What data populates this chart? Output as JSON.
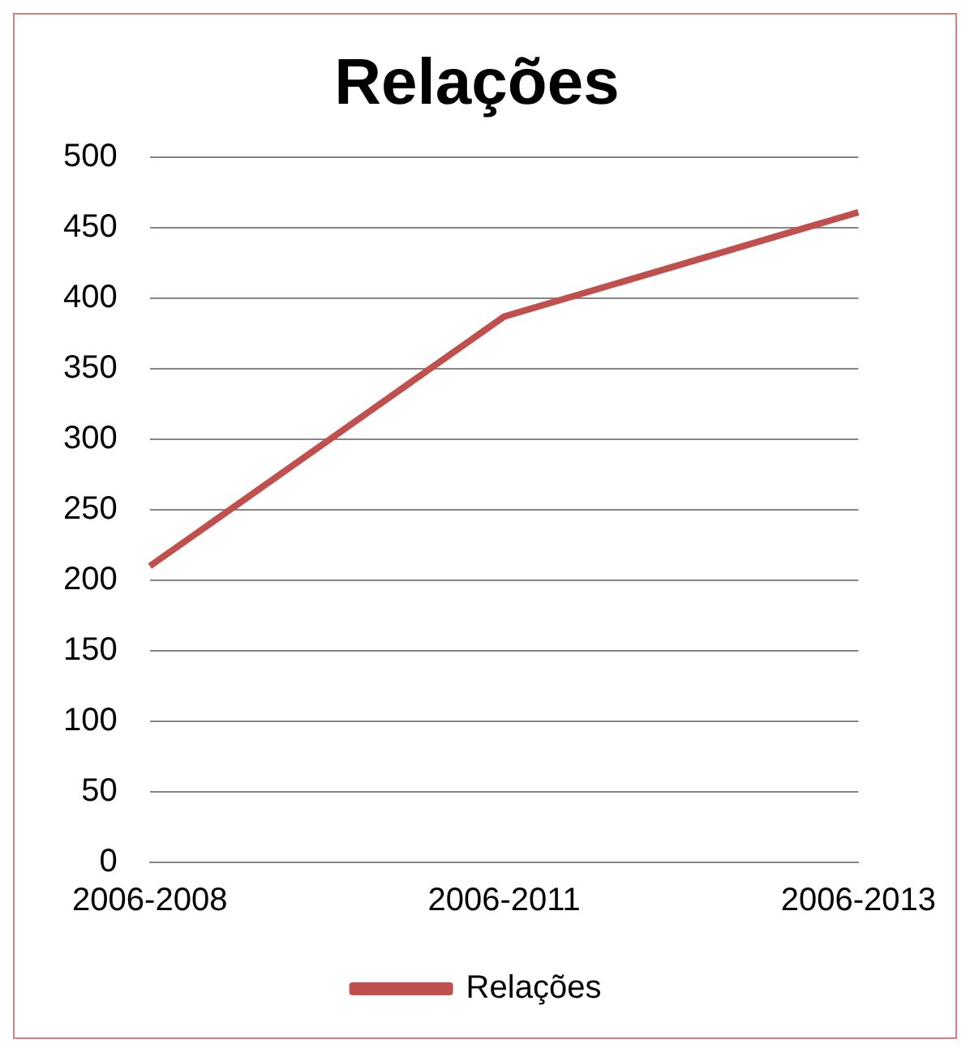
{
  "chart_data": {
    "type": "line",
    "title": "Relações",
    "categories": [
      "2006-2008",
      "2006-2011",
      "2006-2013"
    ],
    "series": [
      {
        "name": "Relações",
        "color": "#c0504d",
        "values": [
          210,
          387,
          461
        ]
      }
    ],
    "ylim": [
      0,
      500
    ],
    "yticks": [
      0,
      50,
      100,
      150,
      200,
      250,
      300,
      350,
      400,
      450,
      500
    ],
    "grid": "y",
    "legend": "bottom",
    "marker": "none"
  }
}
